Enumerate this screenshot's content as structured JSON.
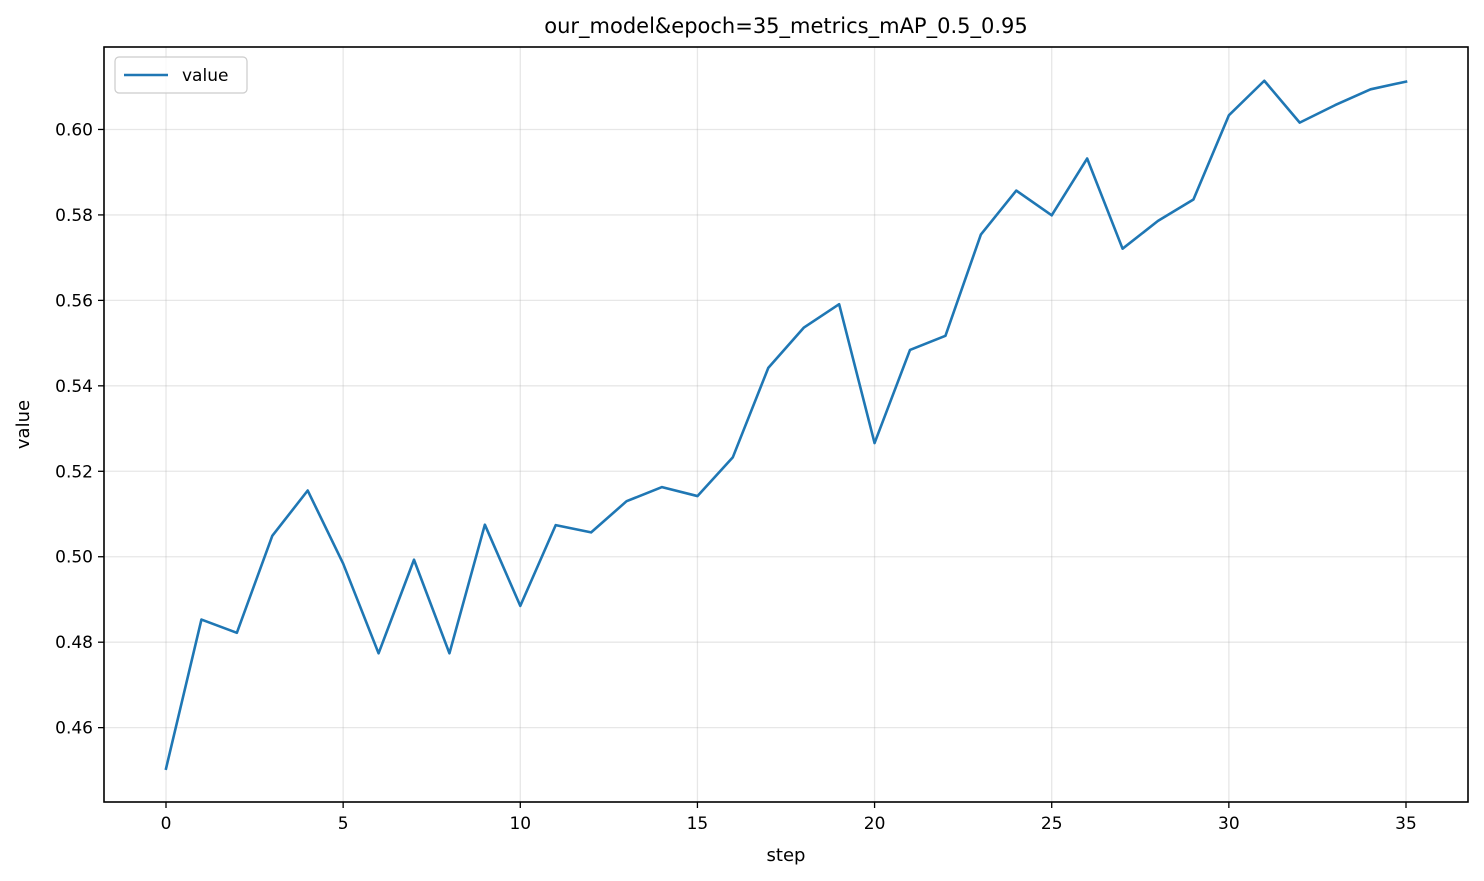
{
  "chart_data": {
    "type": "line",
    "title": "our_model&epoch=35_metrics_mAP_0.5_0.95",
    "xlabel": "step",
    "ylabel": "value",
    "xlim": [
      -1.75,
      36.75
    ],
    "ylim": [
      0.4426,
      0.6193
    ],
    "xticks": [
      0,
      5,
      10,
      15,
      20,
      25,
      30,
      35
    ],
    "yticks": [
      0.46,
      0.48,
      0.5,
      0.52,
      0.54,
      0.56,
      0.58,
      0.6
    ],
    "ytick_labels": [
      "0.46",
      "0.48",
      "0.50",
      "0.52",
      "0.54",
      "0.56",
      "0.58",
      "0.60"
    ],
    "grid": true,
    "legend_position": "top-left",
    "x": [
      0,
      1,
      2,
      3,
      4,
      5,
      6,
      7,
      8,
      9,
      10,
      11,
      12,
      13,
      14,
      15,
      16,
      17,
      18,
      19,
      20,
      21,
      22,
      23,
      24,
      25,
      26,
      27,
      28,
      29,
      30,
      31,
      32,
      33,
      34,
      35
    ],
    "series": [
      {
        "name": "value",
        "color": "#1f77b4",
        "values": [
          0.4504,
          0.4853,
          0.4822,
          0.5049,
          0.5155,
          0.4984,
          0.4774,
          0.4993,
          0.4774,
          0.5075,
          0.4885,
          0.5074,
          0.5057,
          0.513,
          0.5163,
          0.5142,
          0.5233,
          0.5442,
          0.5536,
          0.5591,
          0.5266,
          0.5484,
          0.5517,
          0.5754,
          0.5857,
          0.5799,
          0.5932,
          0.5721,
          0.5786,
          0.5836,
          0.6033,
          0.6114,
          0.6016,
          0.6057,
          0.6094,
          0.6112
        ]
      }
    ]
  }
}
